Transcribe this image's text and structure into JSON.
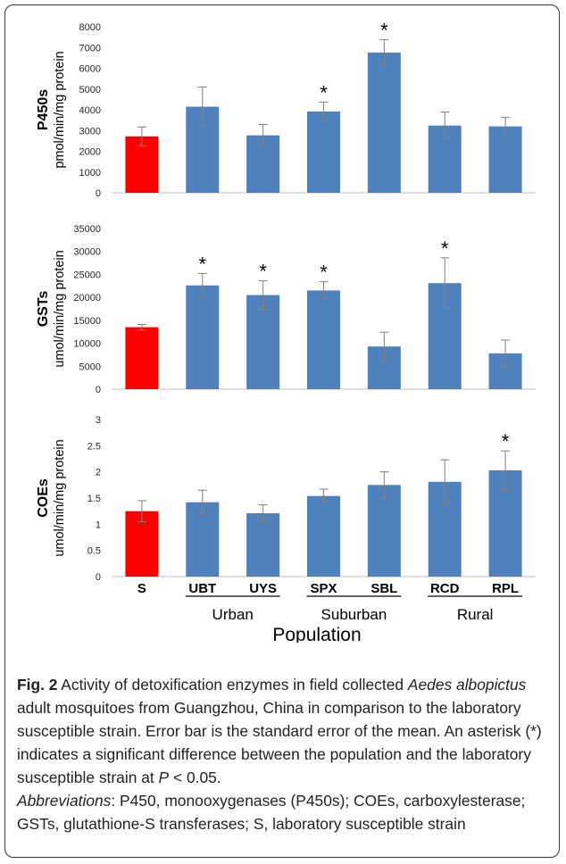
{
  "chart_data": [
    {
      "type": "bar",
      "ylabel_main": "P450s",
      "ylabel_sub": "pmol/min/mg protein",
      "ylim": [
        0,
        8000
      ],
      "yticks": [
        "0",
        "1000",
        "2000",
        "3000",
        "4000",
        "5000",
        "6000",
        "7000",
        "8000"
      ],
      "categories": [
        "S",
        "UBT",
        "UYS",
        "SPX",
        "SBL",
        "RCD",
        "RPL"
      ],
      "values": [
        2720,
        4150,
        2770,
        3920,
        6760,
        3240,
        3200
      ],
      "errors": [
        450,
        950,
        520,
        450,
        620,
        650,
        430
      ],
      "significant": [
        false,
        false,
        false,
        true,
        true,
        false,
        false
      ],
      "colors": [
        "#ff0000",
        "#4f81bd",
        "#4f81bd",
        "#4f81bd",
        "#4f81bd",
        "#4f81bd",
        "#4f81bd"
      ],
      "grid": false
    },
    {
      "type": "bar",
      "ylabel_main": "GSTs",
      "ylabel_sub": "umol/min/mg protein",
      "ylim": [
        0,
        35000
      ],
      "yticks": [
        "0",
        "5000",
        "10000",
        "15000",
        "20000",
        "25000",
        "30000",
        "35000"
      ],
      "categories": [
        "S",
        "UBT",
        "UYS",
        "SPX",
        "SBL",
        "RCD",
        "RPL"
      ],
      "values": [
        13500,
        22600,
        20500,
        21500,
        9300,
        23100,
        7800
      ],
      "errors": [
        600,
        2600,
        3100,
        1900,
        3100,
        5500,
        2900
      ],
      "significant": [
        false,
        true,
        true,
        true,
        false,
        true,
        false
      ],
      "colors": [
        "#ff0000",
        "#4f81bd",
        "#4f81bd",
        "#4f81bd",
        "#4f81bd",
        "#4f81bd",
        "#4f81bd"
      ],
      "grid": false
    },
    {
      "type": "bar",
      "ylabel_main": "COEs",
      "ylabel_sub": "umol/min/mg protein",
      "ylim": [
        0,
        3
      ],
      "yticks": [
        "0",
        "0.5",
        "1",
        "1.5",
        "2",
        "2.5",
        "3"
      ],
      "categories": [
        "S",
        "UBT",
        "UYS",
        "SPX",
        "SBL",
        "RCD",
        "RPL"
      ],
      "values": [
        1.25,
        1.42,
        1.21,
        1.54,
        1.75,
        1.81,
        2.03
      ],
      "errors": [
        0.2,
        0.23,
        0.16,
        0.13,
        0.25,
        0.42,
        0.37
      ],
      "significant": [
        false,
        false,
        false,
        false,
        false,
        false,
        true
      ],
      "colors": [
        "#ff0000",
        "#4f81bd",
        "#4f81bd",
        "#4f81bd",
        "#4f81bd",
        "#4f81bd",
        "#4f81bd"
      ],
      "grid": false
    }
  ],
  "x_axis": {
    "categories": [
      "S",
      "UBT",
      "UYS",
      "SPX",
      "SBL",
      "RCD",
      "RPL"
    ],
    "groups": [
      {
        "label": "Urban",
        "members": [
          "UBT",
          "UYS"
        ]
      },
      {
        "label": "Suburban",
        "members": [
          "SPX",
          "SBL"
        ]
      },
      {
        "label": "Rural",
        "members": [
          "RCD",
          "RPL"
        ]
      }
    ],
    "title": "Population"
  },
  "significance_marker": "*",
  "caption": {
    "fig_label": "Fig. 2",
    "p1": " Activity of detoxification enzymes in field collected ",
    "species": "Aedes albopictus",
    "p2": " adult mosquitoes from Guangzhou, China in comparison to the laboratory susceptible strain. Error bar is the standard error of the mean. An asterisk (*) indicates a significant difference between the population and the laboratory susceptible strain at ",
    "p_symbol": "P",
    "p3": " < 0.05.",
    "abbr_label": "Abbreviations",
    "p4": ": P450, monooxygenases (P450s); COEs, carboxylesterase; GSTs, glutathione-S transferases; S, laboratory susceptible strain"
  }
}
